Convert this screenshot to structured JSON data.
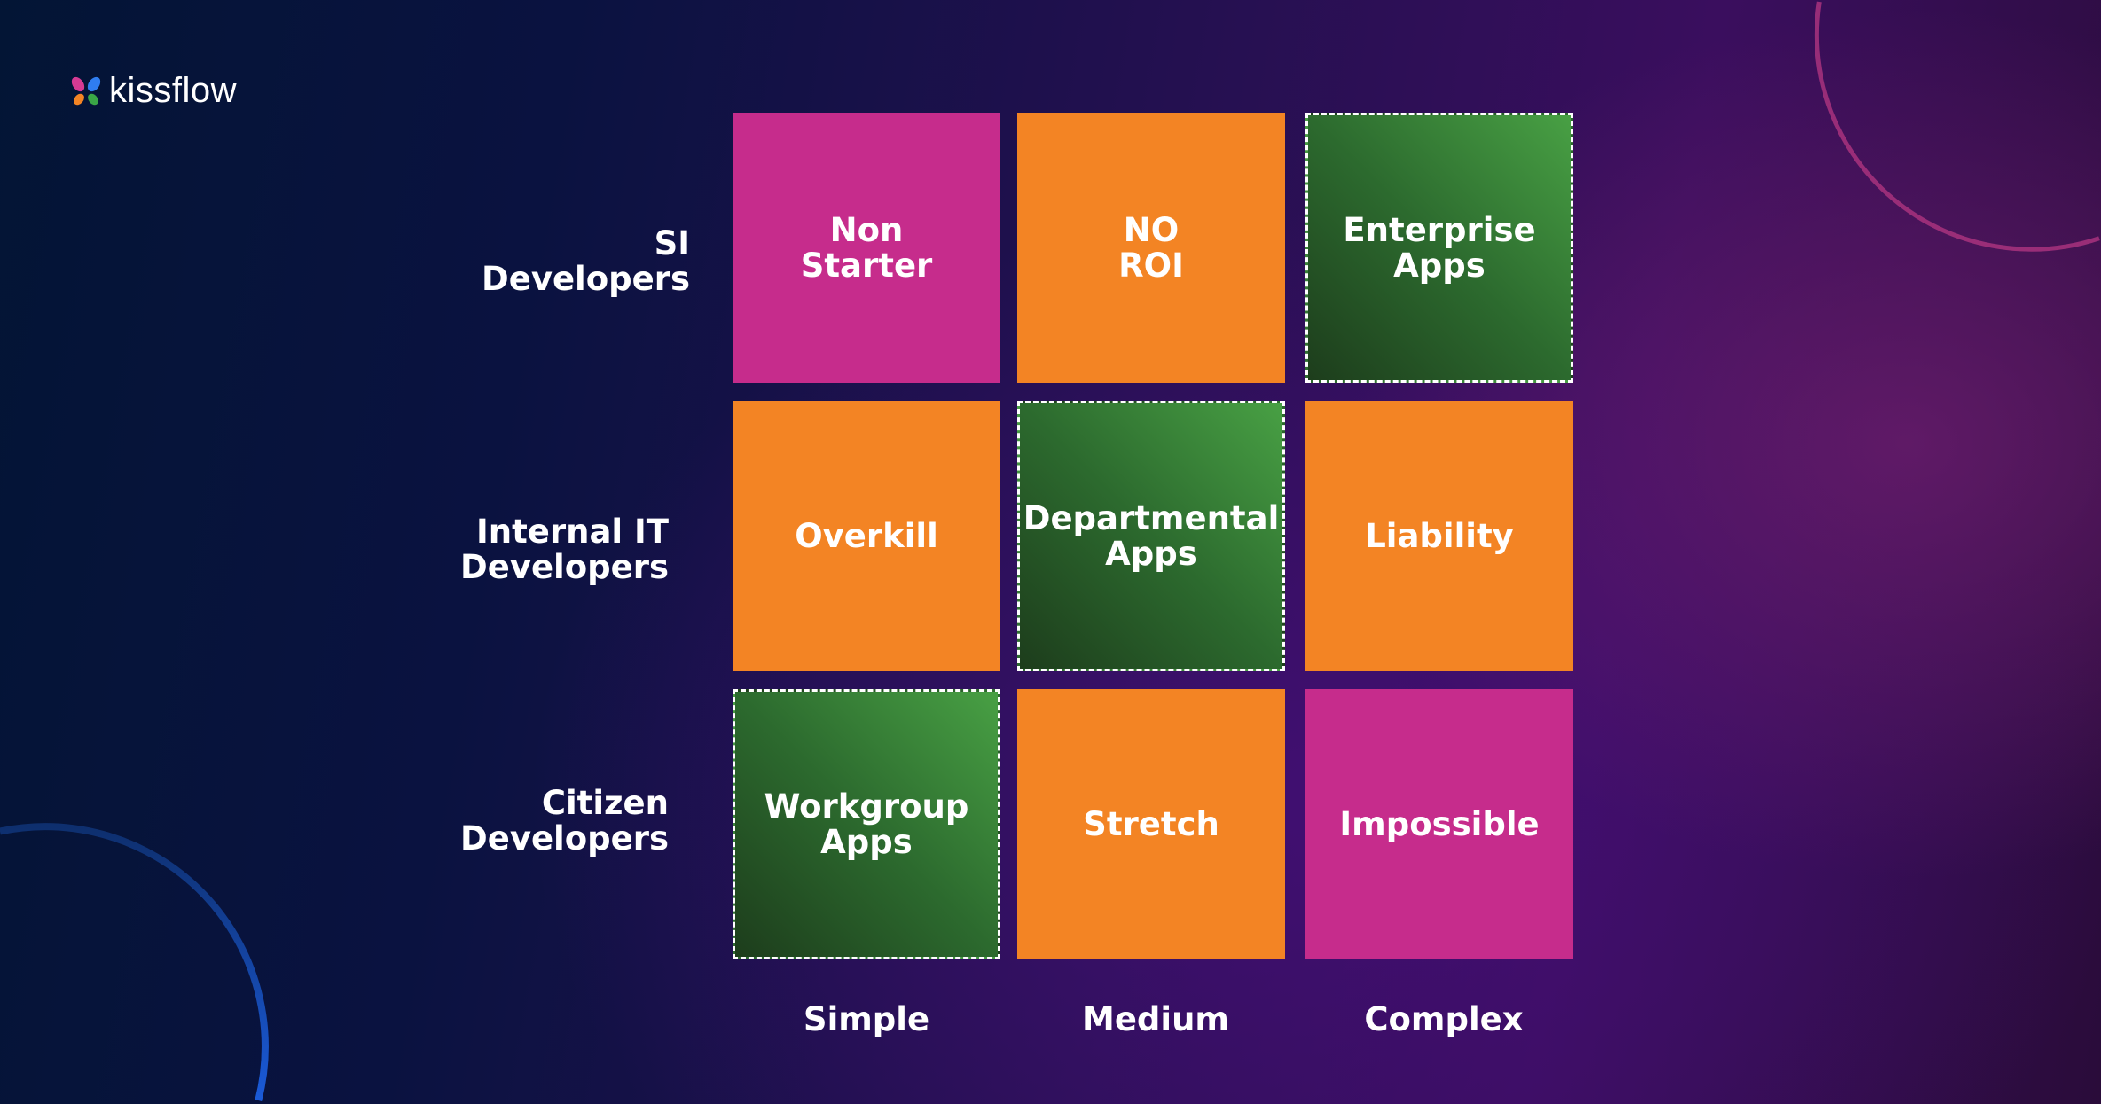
{
  "brand": {
    "name": "kissflow",
    "logo_icon": "butterfly-icon",
    "logo_colors": [
      "#d63a93",
      "#2f7df0",
      "#f38424",
      "#3aa646"
    ]
  },
  "colors": {
    "magenta": "#c62c8c",
    "orange": "#f38424",
    "green": "#2c6a2e"
  },
  "rows": [
    {
      "label": "SI\nDevelopers"
    },
    {
      "label": "Internal IT\nDevelopers"
    },
    {
      "label": "Citizen\nDevelopers"
    }
  ],
  "columns": [
    {
      "label": "Simple"
    },
    {
      "label": "Medium"
    },
    {
      "label": "Complex"
    }
  ],
  "cells": [
    [
      {
        "text": "Non\nStarter",
        "color": "magenta"
      },
      {
        "text": "NO\nROI",
        "color": "orange"
      },
      {
        "text": "Enterprise\nApps",
        "color": "green",
        "highlighted": true
      }
    ],
    [
      {
        "text": "Overkill",
        "color": "orange"
      },
      {
        "text": "Departmental\nApps",
        "color": "green",
        "highlighted": true
      },
      {
        "text": "Liability",
        "color": "orange"
      }
    ],
    [
      {
        "text": "Workgroup\nApps",
        "color": "green",
        "highlighted": true
      },
      {
        "text": "Stretch",
        "color": "orange"
      },
      {
        "text": "Impossible",
        "color": "magenta"
      }
    ]
  ]
}
